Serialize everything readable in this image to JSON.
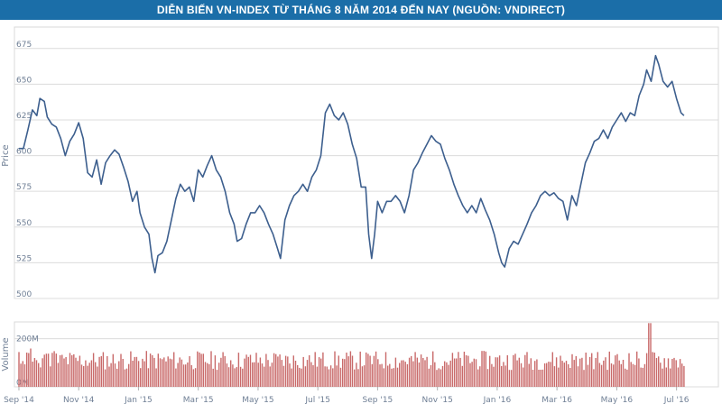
{
  "title": "DIỄN BIẾN VN-INDEX TỪ THÁNG 8 NĂM 2014 ĐẾN NAY (NGUỒN: VNDIRECT)",
  "colors": {
    "title_bg": "#1b6ea8",
    "price_line": "#3d5f8e",
    "volume_bar": "#c96a6a",
    "grid": "#dcdcdc",
    "tick_text": "#6f7f95"
  },
  "chart_data": [
    {
      "type": "line",
      "name": "price",
      "ylabel": "Price",
      "ylim": [
        500,
        690
      ],
      "yticks": [
        500,
        525,
        550,
        575,
        600,
        625,
        650,
        675
      ],
      "x_months": [
        0,
        2,
        4,
        6,
        8,
        10,
        12,
        14,
        16,
        18,
        20,
        22
      ],
      "xlim": [
        -0.15,
        23.4
      ],
      "xticks": [
        "Sep '14",
        "Nov '14",
        "Jan '15",
        "Mar '15",
        "May '15",
        "Jul '15",
        "Sep '15",
        "Nov '15",
        "Jan '16",
        "Mar '16",
        "May '16",
        "Jul '16"
      ],
      "points": [
        [
          0.0,
          605
        ],
        [
          0.15,
          605
        ],
        [
          0.3,
          618
        ],
        [
          0.45,
          632
        ],
        [
          0.6,
          628
        ],
        [
          0.7,
          640
        ],
        [
          0.85,
          638
        ],
        [
          0.95,
          627
        ],
        [
          1.1,
          622
        ],
        [
          1.25,
          620
        ],
        [
          1.4,
          612
        ],
        [
          1.55,
          600
        ],
        [
          1.7,
          610
        ],
        [
          1.85,
          615
        ],
        [
          2.0,
          623
        ],
        [
          2.15,
          612
        ],
        [
          2.3,
          588
        ],
        [
          2.45,
          585
        ],
        [
          2.6,
          597
        ],
        [
          2.75,
          580
        ],
        [
          2.9,
          595
        ],
        [
          3.05,
          600
        ],
        [
          3.2,
          604
        ],
        [
          3.35,
          601
        ],
        [
          3.5,
          592
        ],
        [
          3.65,
          582
        ],
        [
          3.8,
          568
        ],
        [
          3.95,
          575
        ],
        [
          4.05,
          560
        ],
        [
          4.2,
          550
        ],
        [
          4.35,
          545
        ],
        [
          4.45,
          528
        ],
        [
          4.55,
          518
        ],
        [
          4.65,
          530
        ],
        [
          4.8,
          532
        ],
        [
          4.95,
          540
        ],
        [
          5.1,
          555
        ],
        [
          5.25,
          570
        ],
        [
          5.4,
          580
        ],
        [
          5.55,
          575
        ],
        [
          5.7,
          578
        ],
        [
          5.85,
          568
        ],
        [
          6.0,
          590
        ],
        [
          6.15,
          585
        ],
        [
          6.3,
          593
        ],
        [
          6.45,
          600
        ],
        [
          6.6,
          590
        ],
        [
          6.75,
          585
        ],
        [
          6.9,
          575
        ],
        [
          7.05,
          560
        ],
        [
          7.2,
          552
        ],
        [
          7.3,
          540
        ],
        [
          7.45,
          542
        ],
        [
          7.6,
          552
        ],
        [
          7.75,
          560
        ],
        [
          7.9,
          560
        ],
        [
          8.05,
          565
        ],
        [
          8.2,
          560
        ],
        [
          8.35,
          552
        ],
        [
          8.5,
          545
        ],
        [
          8.65,
          535
        ],
        [
          8.75,
          528
        ],
        [
          8.9,
          555
        ],
        [
          9.05,
          565
        ],
        [
          9.2,
          572
        ],
        [
          9.35,
          575
        ],
        [
          9.5,
          580
        ],
        [
          9.65,
          575
        ],
        [
          9.8,
          585
        ],
        [
          9.95,
          590
        ],
        [
          10.1,
          600
        ],
        [
          10.25,
          630
        ],
        [
          10.4,
          636
        ],
        [
          10.55,
          628
        ],
        [
          10.7,
          625
        ],
        [
          10.85,
          630
        ],
        [
          11.0,
          622
        ],
        [
          11.15,
          608
        ],
        [
          11.3,
          598
        ],
        [
          11.45,
          578
        ],
        [
          11.6,
          578
        ],
        [
          11.7,
          545
        ],
        [
          11.8,
          528
        ],
        [
          11.9,
          545
        ],
        [
          12.0,
          568
        ],
        [
          12.15,
          560
        ],
        [
          12.3,
          568
        ],
        [
          12.45,
          568
        ],
        [
          12.6,
          572
        ],
        [
          12.75,
          568
        ],
        [
          12.9,
          560
        ],
        [
          13.05,
          572
        ],
        [
          13.2,
          590
        ],
        [
          13.35,
          595
        ],
        [
          13.5,
          602
        ],
        [
          13.65,
          608
        ],
        [
          13.8,
          614
        ],
        [
          13.95,
          610
        ],
        [
          14.1,
          608
        ],
        [
          14.25,
          598
        ],
        [
          14.4,
          590
        ],
        [
          14.55,
          580
        ],
        [
          14.7,
          572
        ],
        [
          14.85,
          565
        ],
        [
          15.0,
          560
        ],
        [
          15.15,
          565
        ],
        [
          15.3,
          560
        ],
        [
          15.45,
          570
        ],
        [
          15.6,
          562
        ],
        [
          15.75,
          555
        ],
        [
          15.9,
          545
        ],
        [
          16.05,
          532
        ],
        [
          16.15,
          525
        ],
        [
          16.25,
          522
        ],
        [
          16.4,
          535
        ],
        [
          16.55,
          540
        ],
        [
          16.7,
          538
        ],
        [
          16.85,
          545
        ],
        [
          17.0,
          552
        ],
        [
          17.15,
          560
        ],
        [
          17.3,
          565
        ],
        [
          17.45,
          572
        ],
        [
          17.6,
          575
        ],
        [
          17.75,
          572
        ],
        [
          17.9,
          574
        ],
        [
          18.05,
          570
        ],
        [
          18.2,
          568
        ],
        [
          18.35,
          555
        ],
        [
          18.5,
          572
        ],
        [
          18.65,
          565
        ],
        [
          18.8,
          580
        ],
        [
          18.95,
          595
        ],
        [
          19.1,
          602
        ],
        [
          19.25,
          610
        ],
        [
          19.4,
          612
        ],
        [
          19.55,
          618
        ],
        [
          19.7,
          612
        ],
        [
          19.85,
          620
        ],
        [
          20.0,
          625
        ],
        [
          20.15,
          630
        ],
        [
          20.3,
          624
        ],
        [
          20.45,
          630
        ],
        [
          20.6,
          628
        ],
        [
          20.75,
          642
        ],
        [
          20.9,
          650
        ],
        [
          21.0,
          660
        ],
        [
          21.15,
          652
        ],
        [
          21.3,
          670
        ],
        [
          21.4,
          664
        ],
        [
          21.55,
          652
        ],
        [
          21.7,
          648
        ],
        [
          21.85,
          652
        ],
        [
          22.0,
          640
        ],
        [
          22.15,
          630
        ],
        [
          22.25,
          628
        ]
      ]
    },
    {
      "type": "bar",
      "name": "volume",
      "ylabel": "Volume",
      "unit": "M shares",
      "ylim": [
        0,
        270
      ],
      "yticks": [
        0,
        200
      ],
      "ytick_labels": [
        "0M",
        "200M"
      ],
      "typical_range": [
        70,
        150
      ],
      "spike": {
        "x_month": 21.1,
        "value": 265
      }
    }
  ]
}
